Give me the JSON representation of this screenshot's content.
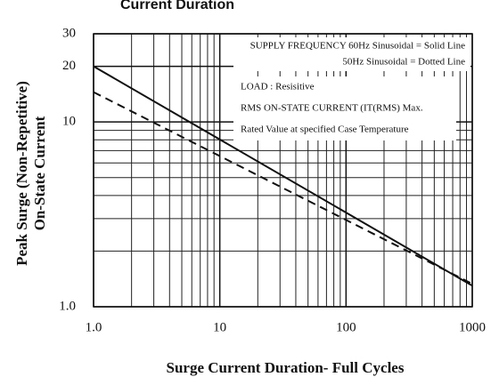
{
  "chart_data": {
    "type": "line",
    "title": "Current Duration",
    "xlabel": "Surge Current Duration- Full Cycles",
    "ylabel_lines": [
      "Peak Surge (Non-Repetitive)",
      "On-State Current"
    ],
    "x_log": true,
    "y_log": true,
    "xlim": [
      1,
      1000
    ],
    "ylim": [
      1,
      30
    ],
    "xticks": [
      {
        "value": 1,
        "label": "1.0"
      },
      10,
      100,
      1000
    ],
    "yticks": [
      {
        "value": 1,
        "label": "1.0"
      },
      10,
      20,
      30
    ],
    "x_minor_grid": [
      2,
      3,
      4,
      5,
      6,
      7,
      8,
      9,
      20,
      30,
      40,
      50,
      60,
      70,
      80,
      90,
      200,
      300,
      400,
      500,
      600,
      700,
      800,
      900
    ],
    "y_minor_grid": [
      2,
      3,
      4,
      5,
      6,
      7,
      8,
      9
    ],
    "grid": true,
    "series": [
      {
        "name": "60Hz Sinusoidal",
        "color": "#111111",
        "dashed": false,
        "x": [
          1,
          1000
        ],
        "values": [
          20,
          1.3
        ]
      },
      {
        "name": "50Hz Sinusoidal",
        "color": "#111111",
        "dashed": true,
        "x": [
          1,
          1000
        ],
        "values": [
          14.5,
          1.33
        ]
      }
    ],
    "annotations": [
      "SUPPLY FREQUENCY 60Hz Sinusoidal = Solid Line",
      "50Hz Sinusoidal = Dotted Line",
      "LOAD : Resisitive",
      "RMS ON-STATE CURRENT (IT(RMS) Max.",
      "Rated Value at specified Case Temperature"
    ]
  }
}
